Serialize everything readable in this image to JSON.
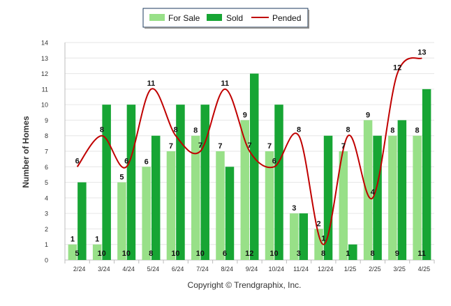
{
  "chart_data": {
    "type": "bar",
    "title": "",
    "xlabel": "",
    "ylabel": "Number of Homes",
    "ylim": [
      0,
      14
    ],
    "yticks": [
      0,
      1,
      2,
      3,
      4,
      5,
      6,
      7,
      8,
      9,
      10,
      11,
      12,
      13,
      14
    ],
    "grid": true,
    "legend_position": "top-center",
    "categories": [
      "2/24",
      "3/24",
      "4/24",
      "5/24",
      "6/24",
      "7/24",
      "8/24",
      "9/24",
      "10/24",
      "11/24",
      "12/24",
      "1/25",
      "2/25",
      "3/25",
      "4/25"
    ],
    "series": [
      {
        "name": "For Sale",
        "kind": "bar",
        "color": "#98e088",
        "values": [
          1,
          1,
          5,
          6,
          7,
          8,
          7,
          9,
          7,
          3,
          2,
          7,
          9,
          8,
          8
        ]
      },
      {
        "name": "Sold",
        "kind": "bar",
        "color": "#17a534",
        "values": [
          5,
          10,
          10,
          8,
          10,
          10,
          6,
          12,
          10,
          3,
          8,
          1,
          8,
          9,
          11
        ]
      },
      {
        "name": "Pended",
        "kind": "line",
        "color": "#c00000",
        "values": [
          6,
          8,
          6,
          11,
          8,
          7,
          11,
          7,
          6,
          8,
          1,
          8,
          4,
          12,
          13
        ]
      }
    ],
    "footer": "Copyright © Trendgraphix, Inc."
  }
}
